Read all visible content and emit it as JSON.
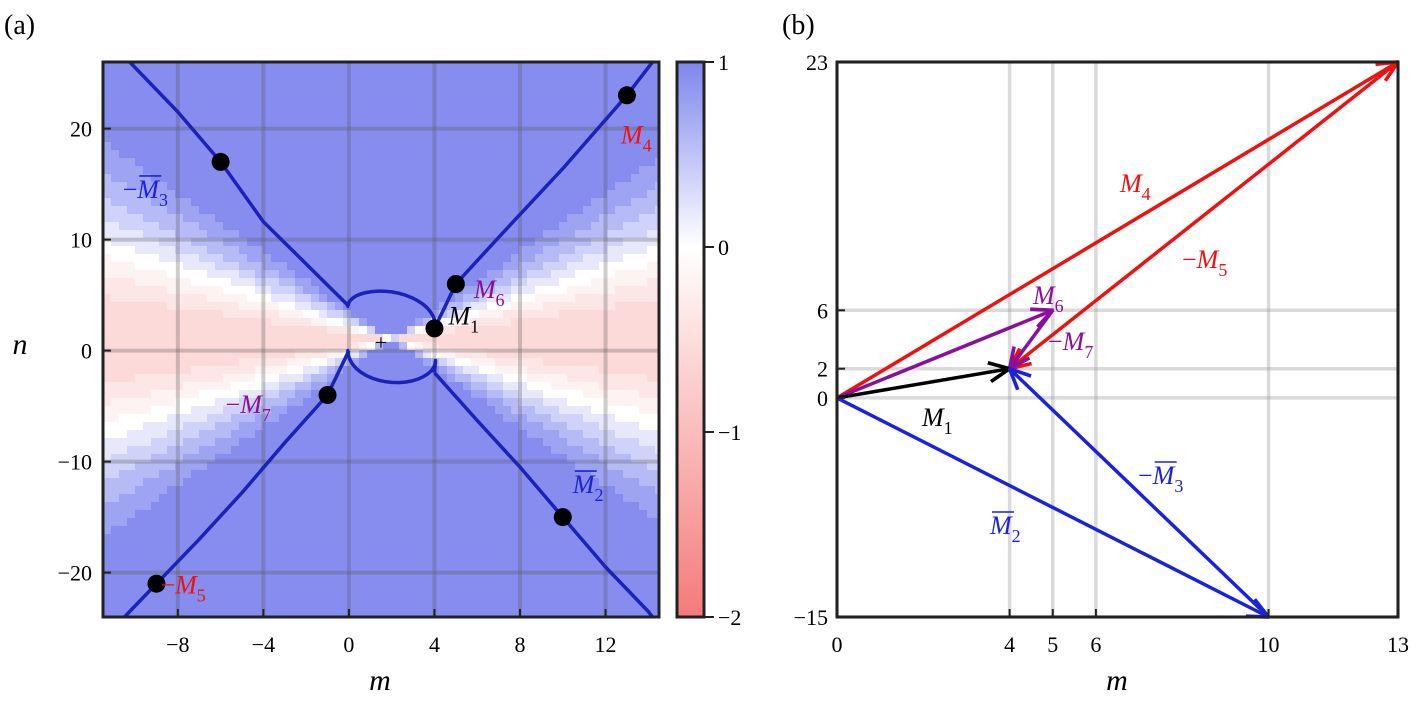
{
  "panel_a": {
    "label": "(a)",
    "xlabel": "m",
    "ylabel": "n",
    "center_marker": "+"
  },
  "panel_b": {
    "label": "(b)",
    "xlabel": "m"
  },
  "colors": {
    "red": "#ee1111",
    "blue": "#1a22dd",
    "purple": "#8a0f9a",
    "black": "#000000",
    "curve": "#1a22b8"
  },
  "chart_data": [
    {
      "type": "heatmap",
      "panel": "(a)",
      "xlabel": "m",
      "ylabel": "n",
      "xlim": [
        -11.5,
        14.5
      ],
      "ylim": [
        -24,
        26
      ],
      "xticks": [
        -8,
        -4,
        0,
        4,
        8,
        12
      ],
      "xtick_labels": [
        "−8",
        "−4",
        "0",
        "4",
        "8",
        "12"
      ],
      "yticks": [
        -20,
        -10,
        0,
        10,
        20
      ],
      "ytick_labels": [
        "−20",
        "−10",
        "0",
        "10",
        "20"
      ],
      "colorbar": {
        "range": [
          -2,
          1
        ],
        "ticks": [
          1,
          0,
          -1,
          -2
        ],
        "tick_labels": [
          "1",
          "0",
          "−1",
          "−2"
        ]
      },
      "grid": true,
      "points": [
        {
          "m": 4,
          "n": 2,
          "label": "M",
          "sub": "1",
          "bar": false,
          "sign": "",
          "color": "black"
        },
        {
          "m": 10,
          "n": -15,
          "label": "M",
          "sub": "2",
          "bar": true,
          "sign": "",
          "color": "blue"
        },
        {
          "m": -6,
          "n": 17,
          "label": "M",
          "sub": "3",
          "bar": true,
          "sign": "−",
          "color": "blue"
        },
        {
          "m": 13,
          "n": 23,
          "label": "M",
          "sub": "4",
          "bar": false,
          "sign": "",
          "color": "red"
        },
        {
          "m": -9,
          "n": -21,
          "label": "M",
          "sub": "5",
          "bar": false,
          "sign": "−",
          "color": "red"
        },
        {
          "m": 5,
          "n": 6,
          "label": "M",
          "sub": "6",
          "bar": false,
          "sign": "",
          "color": "purple"
        },
        {
          "m": -1,
          "n": -4,
          "label": "M",
          "sub": "7",
          "bar": false,
          "sign": "−",
          "color": "purple"
        }
      ]
    },
    {
      "type": "vector",
      "panel": "(b)",
      "xlabel": "m",
      "xlim": [
        0,
        13
      ],
      "ylim": [
        -15,
        23
      ],
      "xticks": [
        0,
        4,
        5,
        6,
        10,
        13
      ],
      "xtick_labels": [
        "0",
        "4",
        "5",
        "6",
        "10",
        "13"
      ],
      "yticks": [
        -15,
        0,
        2,
        6,
        23
      ],
      "ytick_labels": [
        "−15",
        "0",
        "2",
        "6",
        "23"
      ],
      "grid": true,
      "vectors": [
        {
          "from": [
            0,
            0
          ],
          "to": [
            13,
            23
          ],
          "label": "M",
          "sub": "4",
          "bar": false,
          "sign": "",
          "color": "red"
        },
        {
          "from": [
            13,
            23
          ],
          "to": [
            4,
            2
          ],
          "label": "M",
          "sub": "5",
          "bar": false,
          "sign": "−",
          "color": "red"
        },
        {
          "from": [
            0,
            0
          ],
          "to": [
            5,
            6
          ],
          "label": "M",
          "sub": "6",
          "bar": false,
          "sign": "",
          "color": "purple"
        },
        {
          "from": [
            5,
            6
          ],
          "to": [
            4,
            2
          ],
          "label": "M",
          "sub": "7",
          "bar": false,
          "sign": "−",
          "color": "purple"
        },
        {
          "from": [
            0,
            0
          ],
          "to": [
            4,
            2
          ],
          "label": "M",
          "sub": "1",
          "bar": false,
          "sign": "",
          "color": "black"
        },
        {
          "from": [
            0,
            0
          ],
          "to": [
            10,
            -15
          ],
          "label": "M",
          "sub": "2",
          "bar": true,
          "sign": "",
          "color": "blue"
        },
        {
          "from": [
            10,
            -15
          ],
          "to": [
            4,
            2
          ],
          "label": "M",
          "sub": "3",
          "bar": true,
          "sign": "−",
          "color": "blue"
        }
      ]
    }
  ]
}
